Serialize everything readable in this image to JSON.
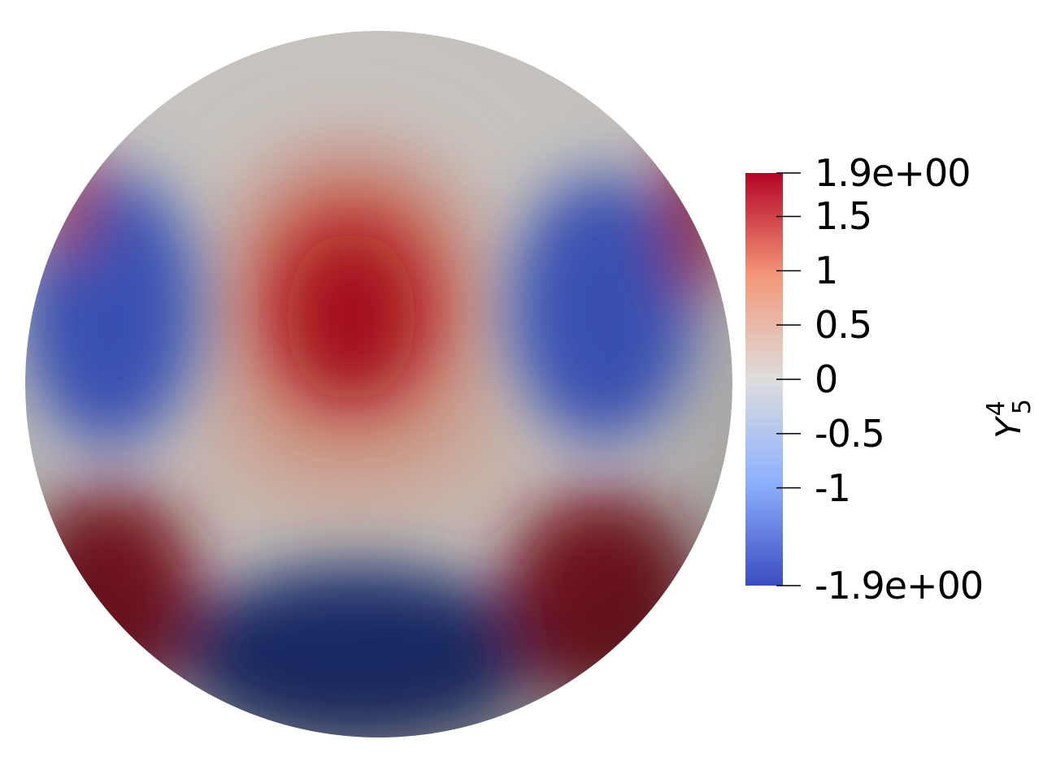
{
  "figure": {
    "subject": "sphere surface colored by scalar field",
    "colormap": "coolwarm",
    "colormap_stops": [
      "#3b4cc0",
      "#8db0fe",
      "#dddddd",
      "#f4987a",
      "#b40426"
    ],
    "background": "#ffffff"
  },
  "colorbar": {
    "title_symbol": "Y",
    "title_sub": "5",
    "title_sup": "4",
    "range": [
      -1.9,
      1.9
    ],
    "ticks": [
      {
        "value": 1.9,
        "label": "1.9e+00"
      },
      {
        "value": 1.5,
        "label": "1.5"
      },
      {
        "value": 1,
        "label": "1"
      },
      {
        "value": 0.5,
        "label": "0.5"
      },
      {
        "value": 0,
        "label": "0"
      },
      {
        "value": -0.5,
        "label": "-0.5"
      },
      {
        "value": -1,
        "label": "-1"
      },
      {
        "value": -1.9,
        "label": "-1.9e+00"
      }
    ]
  }
}
